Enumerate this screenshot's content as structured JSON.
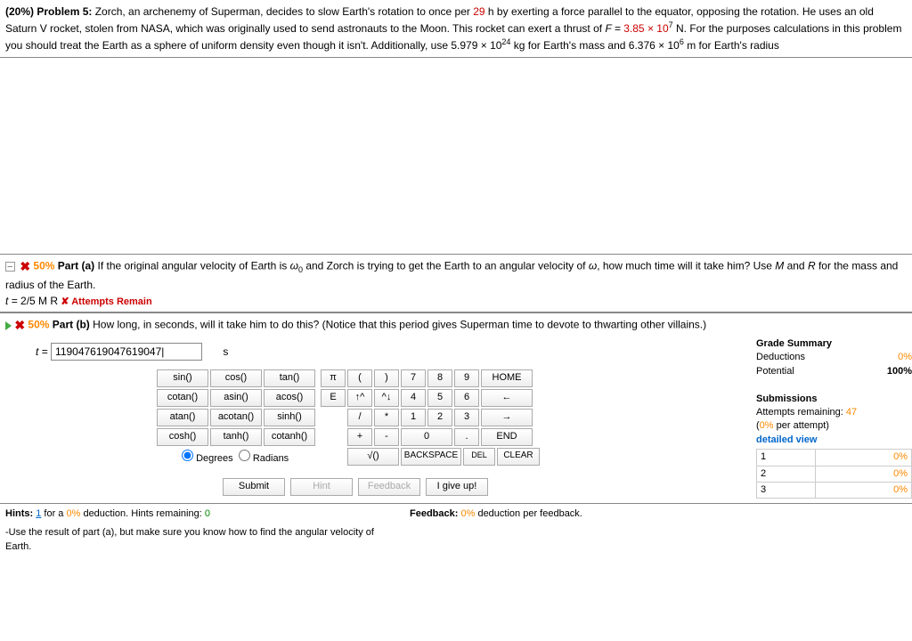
{
  "problem": {
    "weight": "(20%)",
    "label": "Problem 5:",
    "text_before_hours": "Zorch, an archenemy of Superman, decides to slow Earth's rotation to once per ",
    "hours": "29",
    "text_after_hours": " h by exerting a force parallel to the equator, opposing the rotation. He uses an old Saturn V rocket, stolen from NASA, which was originally used to send astronauts to the Moon. This rocket can exert a thrust of ",
    "F_eq": "F =",
    "F_val": "3.85 × 10",
    "F_exp": "7",
    "text_after_F": " N. For the purposes calculations in this problem you should treat the Earth as a sphere of uniform density even though it isn't. Additionally, use 5.979 × 10",
    "mass_exp": "24",
    "text_after_mass": " kg for Earth's mass and 6.376 × 10",
    "radius_exp": "6",
    "text_after_radius": " m for Earth's radius"
  },
  "part_a": {
    "pct": "50%",
    "label": "Part (a)",
    "q1": "If the original angular velocity of Earth is ",
    "w0": "ω",
    "w0sub": "0",
    "q2": " and Zorch is trying to get the Earth to an angular velocity of ",
    "w": "ω",
    "q3": ", how much time will it take him? Use ",
    "M": "M",
    "and": " and ",
    "R": "R",
    "q4": " for the mass and radius of the Earth.",
    "answer_prefix": "t =",
    "answer": " 2/5 M R    ",
    "attempts": "✘ Attempts Remain"
  },
  "part_b": {
    "pct": "50%",
    "label": "Part (b)",
    "q": "How long, in seconds, will it take him to do this? (Notice that this period gives Superman time to devote to thwarting other villains.)",
    "t_label": "t =",
    "input_value": "119047619047619047|",
    "unit": "s"
  },
  "calc": {
    "funcs": [
      [
        "sin()",
        "cos()",
        "tan()"
      ],
      [
        "cotan()",
        "asin()",
        "acos()"
      ],
      [
        "atan()",
        "acotan()",
        "sinh()"
      ],
      [
        "cosh()",
        "tanh()",
        "cotanh()"
      ]
    ],
    "sym_row1": [
      "π",
      "(",
      ")"
    ],
    "sym_row2": [
      "E",
      "↑^",
      "^↓"
    ],
    "sym_row3": [
      "/",
      "*"
    ],
    "sym_row4": [
      "+",
      "-"
    ],
    "sym_row5": "√()",
    "num_row1": [
      "7",
      "8",
      "9"
    ],
    "num_row2": [
      "4",
      "5",
      "6"
    ],
    "num_row3": [
      "1",
      "2",
      "3"
    ],
    "num_row4": [
      "0",
      "."
    ],
    "home": "HOME",
    "left": "←",
    "right": "→",
    "end": "END",
    "backspace": "BACKSPACE",
    "del": "DEL",
    "clear": "CLEAR",
    "degrees": "Degrees",
    "radians": "Radians"
  },
  "summary": {
    "title": "Grade Summary",
    "deductions_label": "Deductions",
    "deductions_val": "0%",
    "potential_label": "Potential",
    "potential_val": "100%",
    "submissions": "Submissions",
    "attempts_label": "Attempts remaining: ",
    "attempts_val": "47",
    "per_attempt_pre": "(",
    "per_attempt_pct": "0%",
    "per_attempt_post": " per attempt)",
    "detailed": "detailed view",
    "rows": [
      [
        "1",
        "0%"
      ],
      [
        "2",
        "0%"
      ],
      [
        "3",
        "0%"
      ]
    ]
  },
  "actions": {
    "submit": "Submit",
    "hint": "Hint",
    "feedback": "Feedback",
    "giveup": "I give up!"
  },
  "hints": {
    "label": "Hints:",
    "count": "1",
    "mid": " for a ",
    "pct": "0%",
    "post": " deduction. Hints remaining: ",
    "remaining": "0",
    "text": "-Use the result of part (a), but make sure you know how to find the angular velocity of Earth.",
    "fb_label": "Feedback:",
    "fb_pct": "0%",
    "fb_post": " deduction per feedback."
  }
}
